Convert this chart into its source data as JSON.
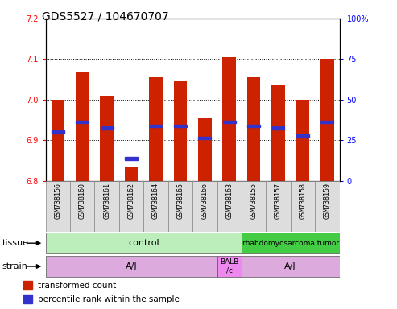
{
  "title": "GDS5527 / 104670707",
  "samples": [
    "GSM738156",
    "GSM738160",
    "GSM738161",
    "GSM738162",
    "GSM738164",
    "GSM738165",
    "GSM738166",
    "GSM738163",
    "GSM738155",
    "GSM738157",
    "GSM738158",
    "GSM738159"
  ],
  "bar_bottoms": [
    6.8,
    6.8,
    6.8,
    6.8,
    6.8,
    6.8,
    6.8,
    6.8,
    6.8,
    6.8,
    6.8,
    6.8
  ],
  "bar_tops": [
    7.0,
    7.07,
    7.01,
    6.835,
    7.055,
    7.045,
    6.955,
    7.105,
    7.055,
    7.035,
    7.0,
    7.1
  ],
  "blue_marker_y": [
    6.92,
    6.945,
    6.93,
    6.855,
    6.935,
    6.935,
    6.905,
    6.945,
    6.935,
    6.93,
    6.91,
    6.945
  ],
  "ylim": [
    6.8,
    7.2
  ],
  "y2lim": [
    0,
    100
  ],
  "yticks": [
    6.8,
    6.9,
    7.0,
    7.1,
    7.2
  ],
  "y2ticks": [
    0,
    25,
    50,
    75,
    100
  ],
  "y2ticklabels": [
    "0",
    "25",
    "50",
    "75",
    "100%"
  ],
  "bar_color": "#cc2200",
  "blue_color": "#3333cc",
  "tissue_labels": [
    "control",
    "rhabdomyosarcoma tumor"
  ],
  "tissue_color_light": "#aaddaa",
  "tissue_color_dark": "#44bb44",
  "strain_labels": [
    "A/J",
    "BALB\n/c",
    "A/J"
  ],
  "strain_color": "#ddaadd",
  "strain_color_balb": "#dd88dd",
  "legend_items": [
    "transformed count",
    "percentile rank within the sample"
  ],
  "bar_width": 0.55,
  "title_fontsize": 10,
  "tick_fontsize": 7,
  "label_fontsize": 8,
  "sample_fontsize": 6,
  "tissue_fontsize": 8,
  "strain_fontsize": 8
}
